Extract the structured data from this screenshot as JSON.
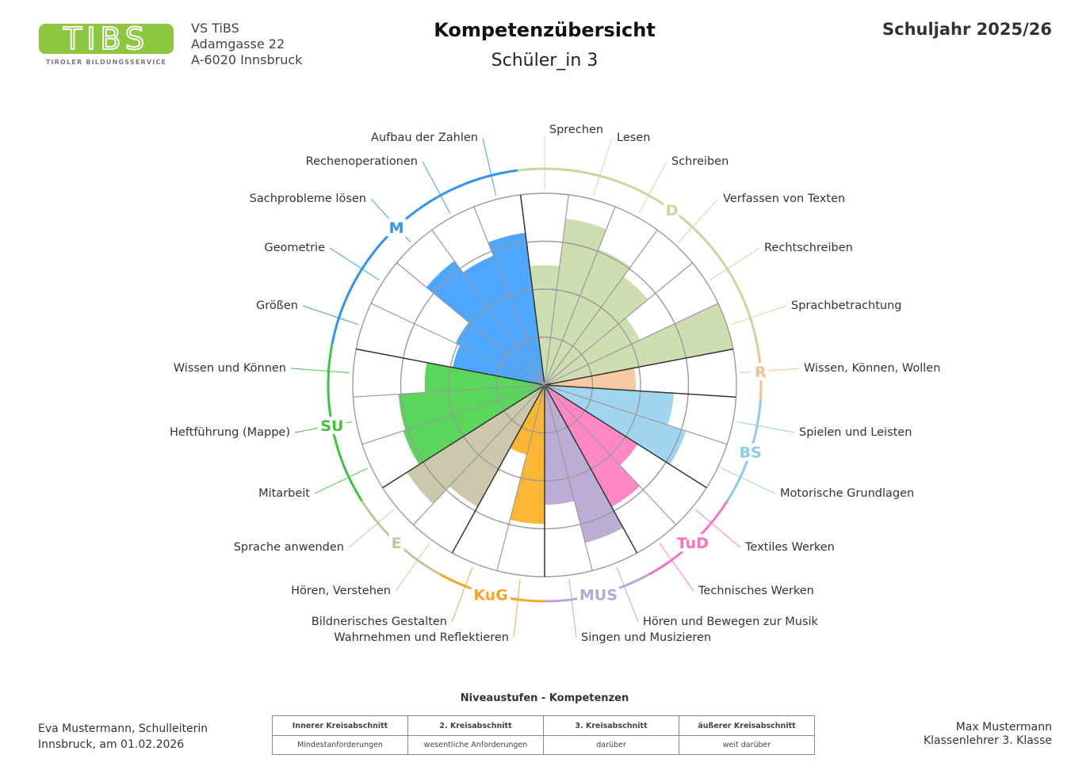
{
  "header": {
    "logo_text": "TIBS",
    "logo_subtitle": "TIROLER BILDUNGSSERVICE",
    "logo_color": "#8dc63f",
    "school_name": "VS TiBS",
    "school_street": "Adamgasse 22",
    "school_city": "A-6020 Innsbruck",
    "title": "Kompetenzübersicht",
    "student": "Schüler_in 3",
    "school_year": "Schuljahr 2025/26"
  },
  "chart_data": {
    "type": "polar-bar",
    "rlim": [
      0,
      4
    ],
    "rings": 4,
    "groups": [
      {
        "abbr": "D",
        "color": "#c5d99c",
        "fill": "#cfdeb1",
        "items": [
          {
            "label": "Sprechen",
            "value": 2.5
          },
          {
            "label": "Lesen",
            "value": 3.5
          },
          {
            "label": "Schreiben",
            "value": 3.05
          },
          {
            "label": "Verfassen von Texten",
            "value": 2.8
          },
          {
            "label": "Rechtschreiben",
            "value": 2.2
          },
          {
            "label": "Sprachbetrachtung",
            "value": 4.0
          }
        ]
      },
      {
        "abbr": "R",
        "color": "#f5bf91",
        "fill": "#f9caa2",
        "items": [
          {
            "label": "Wissen, Können, Wollen",
            "value": 1.9
          }
        ]
      },
      {
        "abbr": "BS",
        "color": "#8ccbe8",
        "fill": "#9fd5ee",
        "items": [
          {
            "label": "Spielen und Leisten",
            "value": 2.7
          },
          {
            "label": "Motorische Grundlagen",
            "value": 3.1
          }
        ]
      },
      {
        "abbr": "TuD",
        "color": "#ff6fc0",
        "fill": "#ff88c4",
        "items": [
          {
            "label": "Textiles Werken",
            "value": 2.3
          },
          {
            "label": "Technisches Werken",
            "value": 2.9
          }
        ]
      },
      {
        "abbr": "MUS",
        "color": "#b7a7d6",
        "fill": "#bcadd4",
        "items": [
          {
            "label": "Hören und Bewegen zur Musik",
            "value": 3.4
          },
          {
            "label": "Singen und Musizieren",
            "value": 2.5
          }
        ]
      },
      {
        "abbr": "KuG",
        "color": "#f5a623",
        "fill": "#fbb634",
        "items": [
          {
            "label": "Wahrnehmen und Reflektieren",
            "value": 2.9
          },
          {
            "label": "Bildnerisches Gestalten",
            "value": 1.5
          }
        ]
      },
      {
        "abbr": "E",
        "color": "#c9c29f",
        "fill": "#ccc8ab",
        "items": [
          {
            "label": "Hören, Verstehen",
            "value": 2.9
          },
          {
            "label": "Sprache anwenden",
            "value": 3.4
          }
        ]
      },
      {
        "abbr": "SU",
        "color": "#3cc43c",
        "fill": "#5ad65a",
        "items": [
          {
            "label": "Mitarbeit",
            "value": 3.1
          },
          {
            "label": "Heftführung (Mappe)",
            "value": 3.05
          },
          {
            "label": "Wissen und Können",
            "value": 2.5
          }
        ]
      },
      {
        "abbr": "M",
        "color": "#2e96f0",
        "fill": "#4da6ff",
        "items": [
          {
            "label": "Größen",
            "value": 1.95
          },
          {
            "label": "Geometrie",
            "value": 2.05
          },
          {
            "label": "Sachprobleme lösen",
            "value": 3.2
          },
          {
            "label": "Rechenoperationen",
            "value": 2.9
          },
          {
            "label": "Aufbau der Zahlen",
            "value": 3.2
          }
        ]
      }
    ]
  },
  "legend": {
    "title": "Niveaustufen - Kompetenzen",
    "headers": [
      "Innerer Kreisabschnitt",
      "2. Kreisabschnitt",
      "3. Kreisabschnitt",
      "äußerer Kreisabschnitt"
    ],
    "descriptions": [
      "Mindestanforderungen",
      "wesentliche Anforderungen",
      "darüber",
      "weit darüber"
    ]
  },
  "footer": {
    "principal": "Eva Mustermann, Schulleiterin",
    "place_date": "Innsbruck, am 01.02.2026",
    "teacher": "Max Mustermann",
    "teacher_role": "Klassenlehrer 3. Klasse"
  }
}
